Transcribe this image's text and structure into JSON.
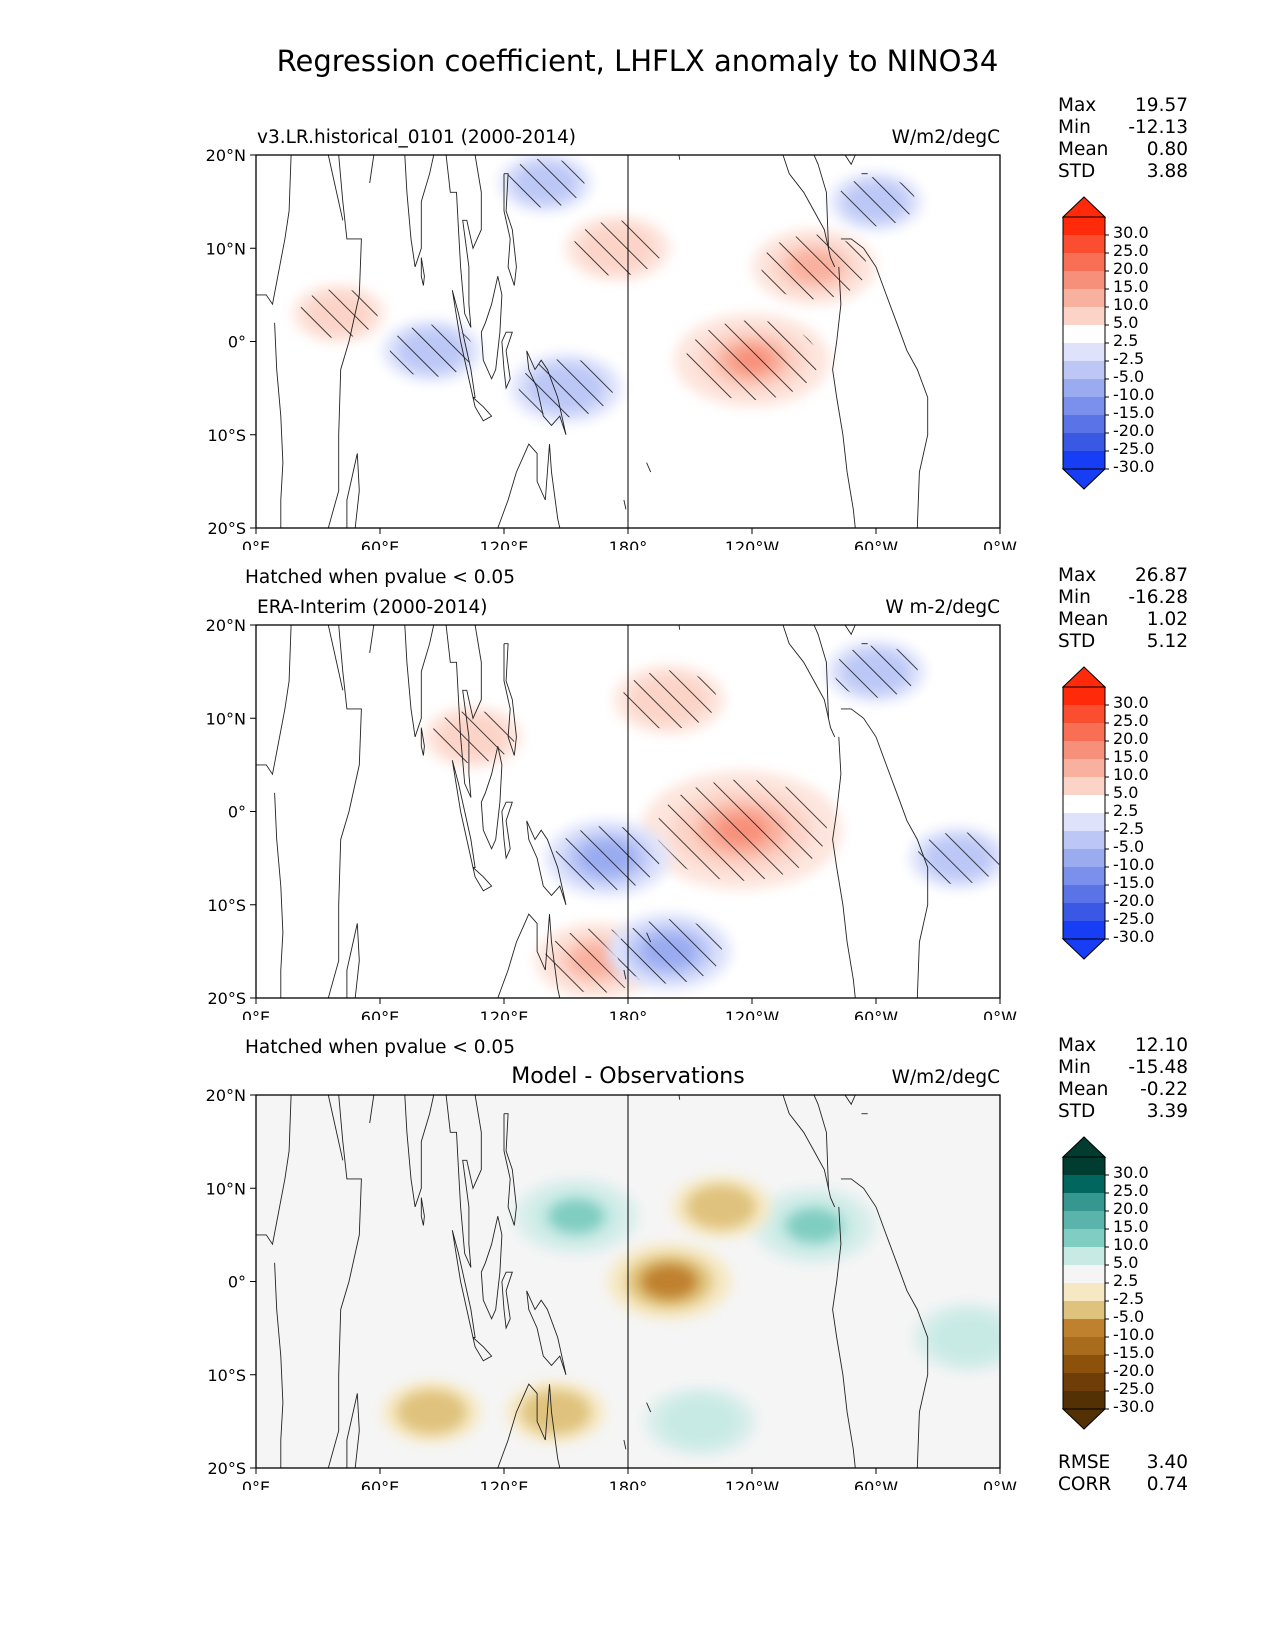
{
  "title": "Regression coefficient, LHFLX anomaly to NINO34",
  "hatch_note": "Hatched when pvalue < 0.05",
  "x_ticks": [
    "0°E",
    "60°E",
    "120°E",
    "180°",
    "120°W",
    "60°W",
    "0°W"
  ],
  "y_ticks": [
    "20°N",
    "10°N",
    "0°",
    "10°S",
    "20°S"
  ],
  "panels": [
    {
      "left_title": "v3.LR.historical_0101 (2000-2014)",
      "center_title": "",
      "units": "W/m2/degC",
      "colormap": "diverging-blue-red",
      "stats": [
        {
          "label": "Max",
          "value": "19.57"
        },
        {
          "label": "Min",
          "value": "-12.13"
        },
        {
          "label": "Mean",
          "value": "0.80"
        },
        {
          "label": "STD",
          "value": "3.88"
        }
      ]
    },
    {
      "left_title": "ERA-Interim (2000-2014)",
      "center_title": "",
      "units": "W m-2/degC",
      "colormap": "diverging-blue-red",
      "stats": [
        {
          "label": "Max",
          "value": "26.87"
        },
        {
          "label": "Min",
          "value": "-16.28"
        },
        {
          "label": "Mean",
          "value": "1.02"
        },
        {
          "label": "STD",
          "value": "5.12"
        }
      ]
    },
    {
      "left_title": "",
      "center_title": "Model - Observations",
      "units": "W/m2/degC",
      "colormap": "diverging-brown-teal",
      "stats": [
        {
          "label": "Max",
          "value": "12.10"
        },
        {
          "label": "Min",
          "value": "-15.48"
        },
        {
          "label": "Mean",
          "value": "-0.22"
        },
        {
          "label": "STD",
          "value": "3.39"
        }
      ]
    }
  ],
  "bottom_stats": [
    {
      "label": "RMSE",
      "value": "3.40"
    },
    {
      "label": "CORR",
      "value": "0.74"
    }
  ],
  "chart_data": [
    {
      "type": "heatmap",
      "title": "v3.LR.historical_0101 (2000-2014)",
      "units": "W/m2/degC",
      "xlim": [
        0,
        360
      ],
      "ylim": [
        -20,
        20
      ],
      "x_tick_values": [
        0,
        60,
        120,
        180,
        240,
        300,
        360
      ],
      "y_tick_values": [
        20,
        10,
        0,
        -10,
        -20
      ],
      "colorbar_levels": [
        30.0,
        25.0,
        20.0,
        15.0,
        10.0,
        5.0,
        2.5,
        -2.5,
        -5.0,
        -10.0,
        -15.0,
        -20.0,
        -25.0,
        -30.0
      ],
      "features": [
        {
          "lon": 240,
          "lat": -2,
          "value": 15,
          "note": "positive maximum east-central Pacific"
        },
        {
          "lon": 175,
          "lat": 10,
          "value": 7
        },
        {
          "lon": 270,
          "lat": 8,
          "value": 10
        },
        {
          "lon": 40,
          "lat": 3,
          "value": 5
        },
        {
          "lon": 150,
          "lat": -5,
          "value": -8
        },
        {
          "lon": 85,
          "lat": -1,
          "value": -6
        },
        {
          "lon": 300,
          "lat": 15,
          "value": -5
        },
        {
          "lon": 140,
          "lat": 17,
          "value": -5
        }
      ]
    },
    {
      "type": "heatmap",
      "title": "ERA-Interim (2000-2014)",
      "units": "W m-2/degC",
      "xlim": [
        0,
        360
      ],
      "ylim": [
        -20,
        20
      ],
      "x_tick_values": [
        0,
        60,
        120,
        180,
        240,
        300,
        360
      ],
      "y_tick_values": [
        20,
        10,
        0,
        -10,
        -20
      ],
      "colorbar_levels": [
        30.0,
        25.0,
        20.0,
        15.0,
        10.0,
        5.0,
        2.5,
        -2.5,
        -5.0,
        -10.0,
        -15.0,
        -20.0,
        -25.0,
        -30.0
      ],
      "features": [
        {
          "lon": 235,
          "lat": -2,
          "value": 22,
          "note": "positive maximum east-central Pacific"
        },
        {
          "lon": 200,
          "lat": 12,
          "value": 8
        },
        {
          "lon": 165,
          "lat": -16,
          "value": 10
        },
        {
          "lon": 105,
          "lat": 8,
          "value": 6
        },
        {
          "lon": 170,
          "lat": -5,
          "value": -10
        },
        {
          "lon": 200,
          "lat": -15,
          "value": -10
        },
        {
          "lon": 300,
          "lat": 15,
          "value": -6
        },
        {
          "lon": 340,
          "lat": -5,
          "value": -6
        }
      ]
    },
    {
      "type": "heatmap",
      "title": "Model - Observations",
      "units": "W/m2/degC",
      "xlim": [
        0,
        360
      ],
      "ylim": [
        -20,
        20
      ],
      "x_tick_values": [
        0,
        60,
        120,
        180,
        240,
        300,
        360
      ],
      "y_tick_values": [
        20,
        10,
        0,
        -10,
        -20
      ],
      "colorbar_levels": [
        30.0,
        25.0,
        20.0,
        15.0,
        10.0,
        5.0,
        2.5,
        -2.5,
        -5.0,
        -10.0,
        -15.0,
        -20.0,
        -25.0,
        -30.0
      ],
      "features": [
        {
          "lon": 155,
          "lat": 7,
          "value": 10
        },
        {
          "lon": 270,
          "lat": 6,
          "value": 10
        },
        {
          "lon": 345,
          "lat": -6,
          "value": 8
        },
        {
          "lon": 215,
          "lat": -15,
          "value": 8
        },
        {
          "lon": 200,
          "lat": 0,
          "value": -10,
          "note": "negative minimum central Pacific"
        },
        {
          "lon": 225,
          "lat": 8,
          "value": -6
        },
        {
          "lon": 85,
          "lat": -14,
          "value": -6
        },
        {
          "lon": 145,
          "lat": -14,
          "value": -6
        }
      ]
    }
  ]
}
